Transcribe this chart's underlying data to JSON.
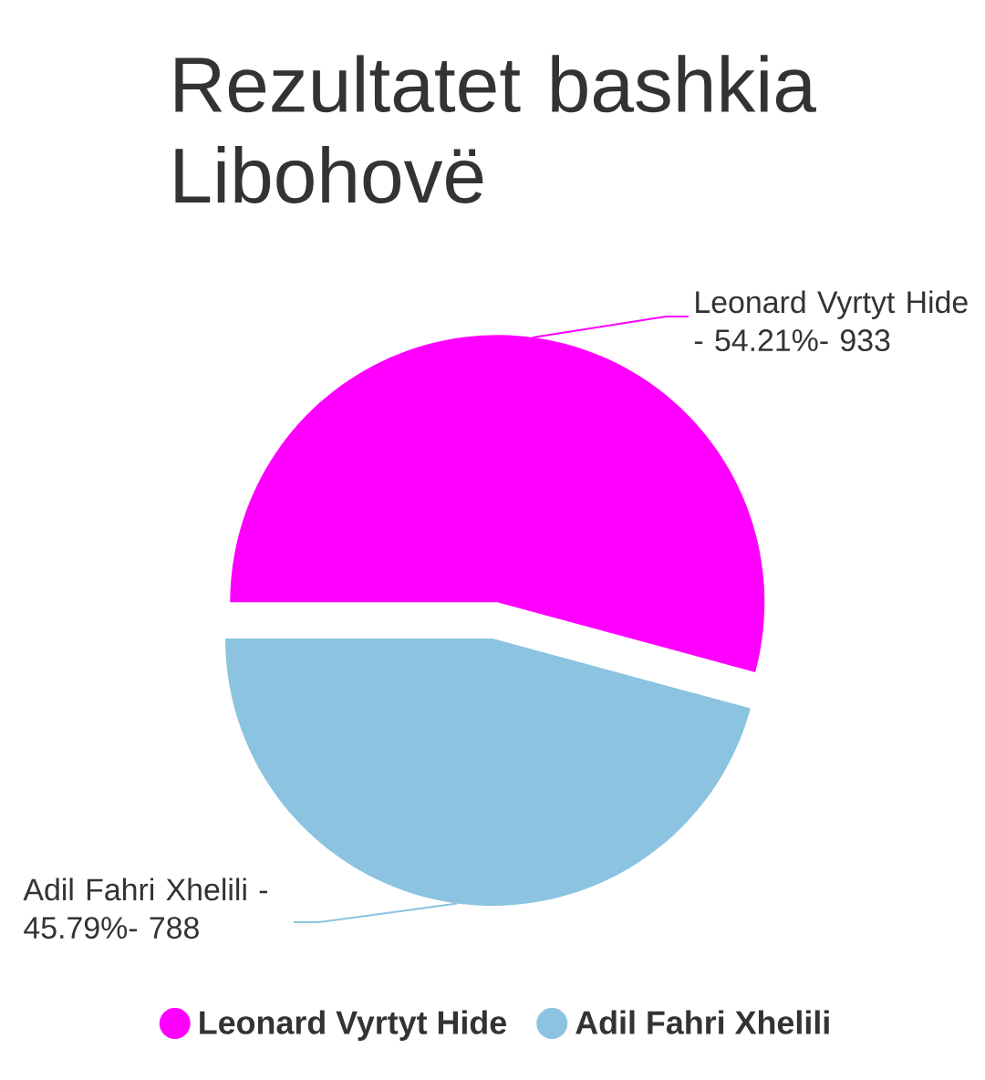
{
  "chart_data": {
    "type": "pie",
    "title": "Rezultatet bashkia Libohovë",
    "categories": [
      "Leonard Vyrtyt Hide",
      "Adil Fahri Xhelili"
    ],
    "values": [
      54.21,
      45.79
    ],
    "colors": [
      "#ff00ff",
      "#8bc3e1"
    ],
    "annotations": [
      "Leonard Vyrtyt Hide - 54.21%- 933",
      "Adil Fahri Xhelili - 45.79%- 788"
    ],
    "legend": "bottom"
  }
}
